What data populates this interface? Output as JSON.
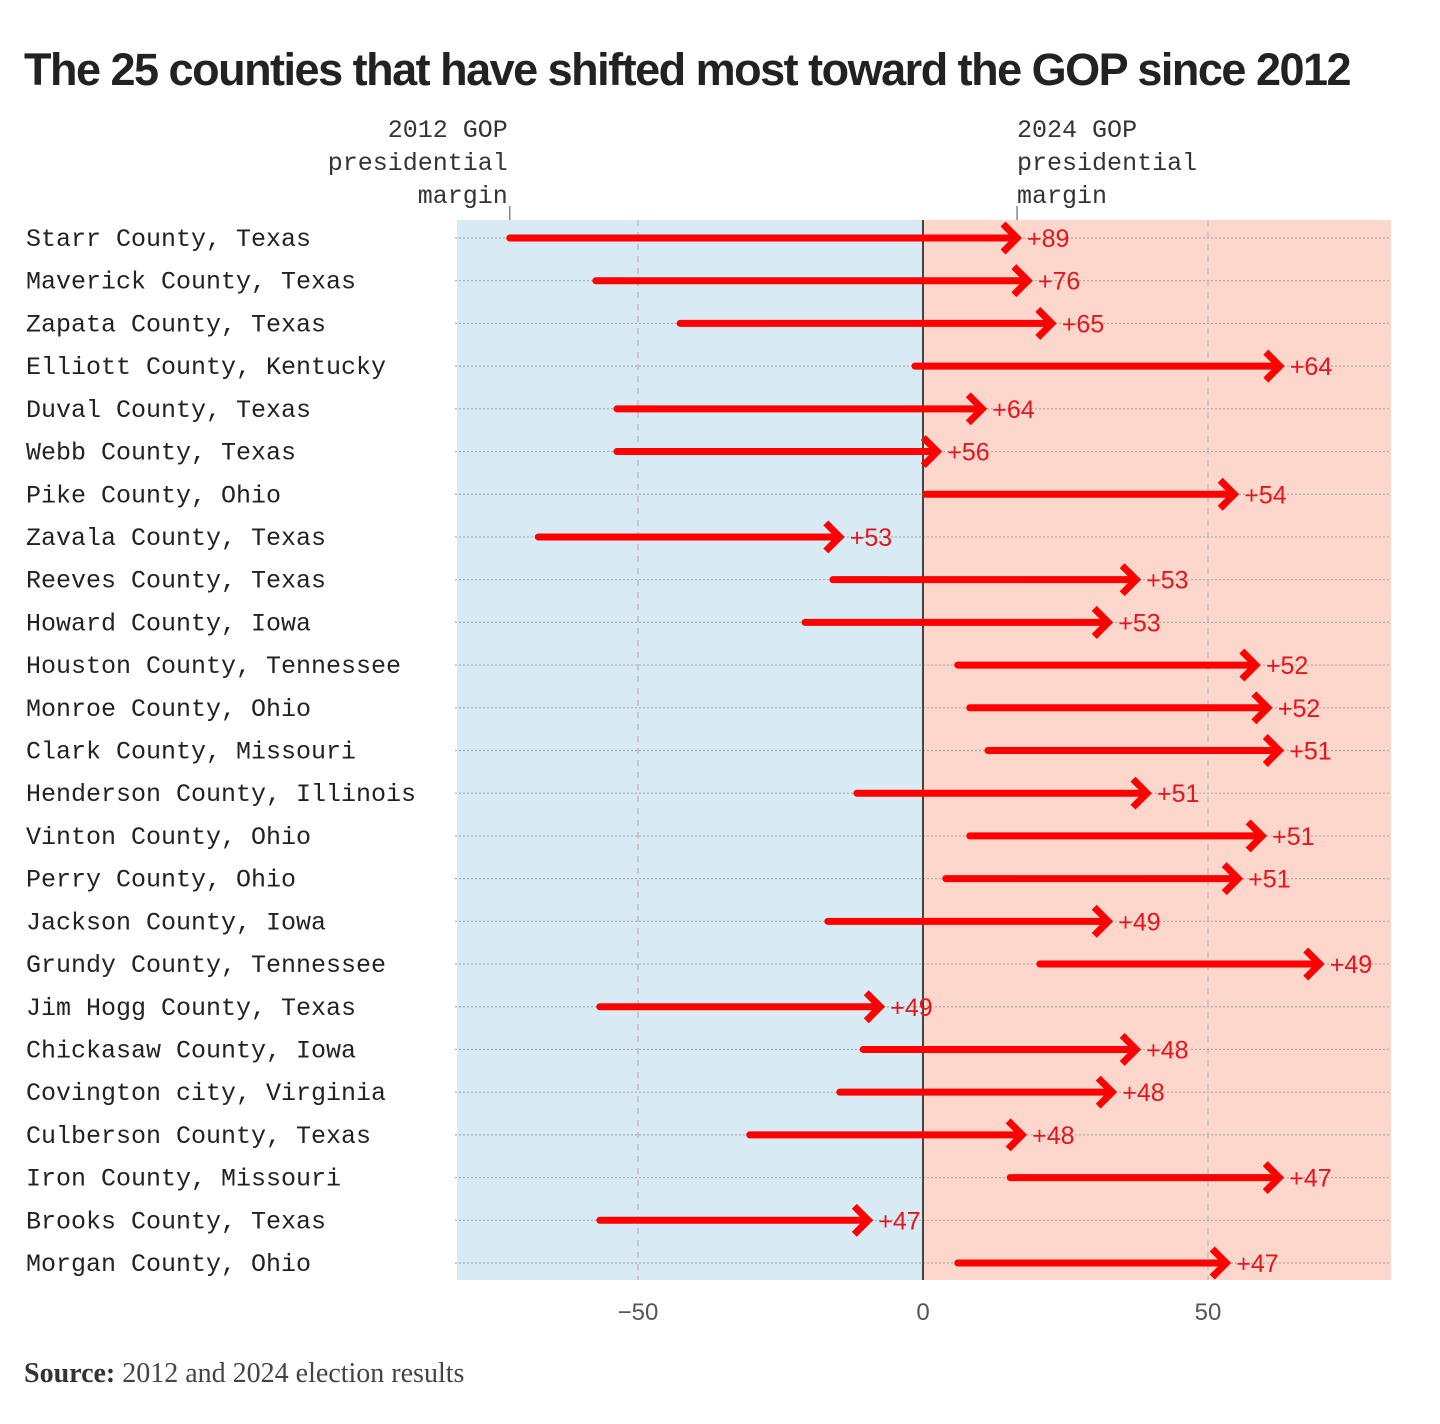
{
  "title": "The 25 counties that have shifted most toward the GOP since 2012",
  "source_label": "Source:",
  "source_text": "2012 and 2024 election results",
  "chart_data": {
    "type": "arrow",
    "title": "The 25 counties that have shifted most toward the GOP since 2012",
    "annotation_start": [
      "2012 GOP",
      "presidential",
      "margin"
    ],
    "annotation_end": [
      "2024 GOP",
      "presidential",
      "margin"
    ],
    "xlim": [
      -82,
      82
    ],
    "xticks": [
      -50,
      0,
      50
    ],
    "xtick_labels": [
      "−50",
      "0",
      "50"
    ],
    "grid": true,
    "colors": {
      "dem_bg": "#d8eaf4",
      "gop_bg": "#fdd6cc",
      "arrow": "#ff0000",
      "label": "#e8141c"
    },
    "rows": [
      {
        "county": "Starr County, Texas",
        "start": -72.5,
        "end": 16.5,
        "shift": "+89"
      },
      {
        "county": "Maverick County, Texas",
        "start": -57.4,
        "end": 18.4,
        "shift": "+76"
      },
      {
        "county": "Zapata County, Texas",
        "start": -42.6,
        "end": 22.6,
        "shift": "+65"
      },
      {
        "county": "Elliott County, Kentucky",
        "start": -1.4,
        "end": 62.6,
        "shift": "+64"
      },
      {
        "county": "Duval County, Texas",
        "start": -53.7,
        "end": 10.4,
        "shift": "+64"
      },
      {
        "county": "Webb County, Texas",
        "start": -53.7,
        "end": 2.5,
        "shift": "+56"
      },
      {
        "county": "Pike County, Ohio",
        "start": 0.5,
        "end": 54.6,
        "shift": "+54"
      },
      {
        "county": "Zavala County, Texas",
        "start": -67.5,
        "end": -14.6,
        "shift": "+53"
      },
      {
        "county": "Reeves County, Texas",
        "start": -15.8,
        "end": 37.4,
        "shift": "+53"
      },
      {
        "county": "Howard County, Iowa",
        "start": -20.7,
        "end": 32.5,
        "shift": "+53"
      },
      {
        "county": "Houston County, Tennessee",
        "start": 6.1,
        "end": 58.4,
        "shift": "+52"
      },
      {
        "county": "Monroe County, Ohio",
        "start": 8.2,
        "end": 60.5,
        "shift": "+52"
      },
      {
        "county": "Clark County, Missouri",
        "start": 11.4,
        "end": 62.5,
        "shift": "+51"
      },
      {
        "county": "Henderson County, Illinois",
        "start": -11.6,
        "end": 39.3,
        "shift": "+51"
      },
      {
        "county": "Vinton County, Ohio",
        "start": 8.2,
        "end": 59.5,
        "shift": "+51"
      },
      {
        "county": "Perry County, Ohio",
        "start": 4.0,
        "end": 55.3,
        "shift": "+51"
      },
      {
        "county": "Jackson County, Iowa",
        "start": -16.7,
        "end": 32.5,
        "shift": "+49"
      },
      {
        "county": "Grundy County, Tennessee",
        "start": 20.5,
        "end": 69.6,
        "shift": "+49"
      },
      {
        "county": "Jim Hogg County, Texas",
        "start": -56.7,
        "end": -7.5,
        "shift": "+49"
      },
      {
        "county": "Chickasaw County, Iowa",
        "start": -10.5,
        "end": 37.4,
        "shift": "+48"
      },
      {
        "county": "Covington city, Virginia",
        "start": -14.6,
        "end": 33.2,
        "shift": "+48"
      },
      {
        "county": "Culberson County, Texas",
        "start": -30.4,
        "end": 17.4,
        "shift": "+48"
      },
      {
        "county": "Iron County, Missouri",
        "start": 15.3,
        "end": 62.5,
        "shift": "+47"
      },
      {
        "county": "Brooks County, Texas",
        "start": -56.7,
        "end": -9.6,
        "shift": "+47"
      },
      {
        "county": "Morgan County, Ohio",
        "start": 6.1,
        "end": 53.2,
        "shift": "+47"
      }
    ]
  }
}
